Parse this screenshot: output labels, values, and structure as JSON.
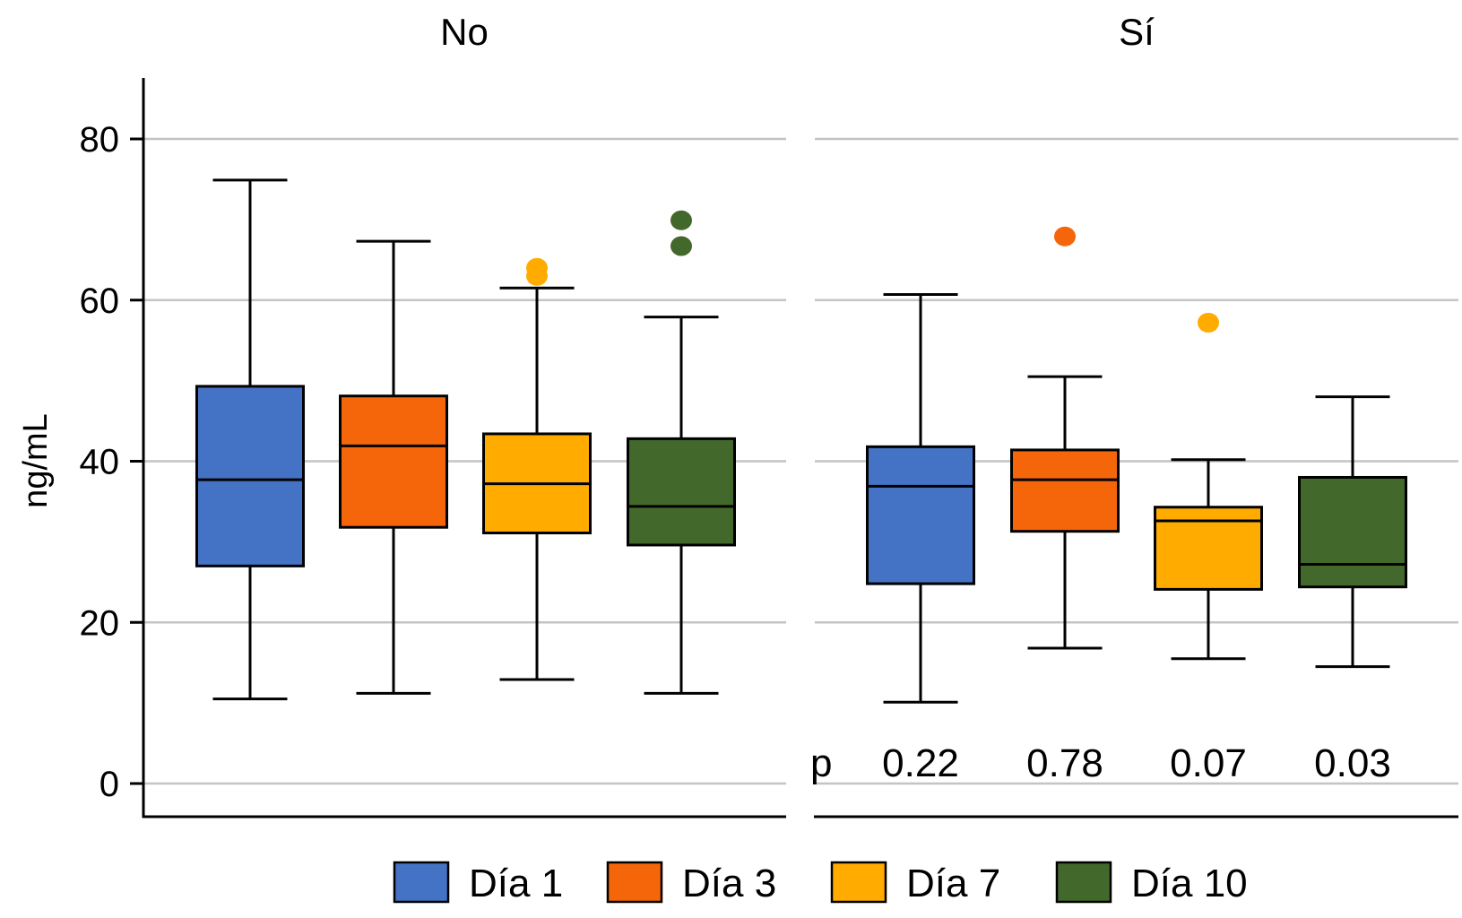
{
  "chart_data": {
    "type": "boxplot",
    "title": "",
    "ylabel": "ng/mL",
    "xlabel": "",
    "ylim": [
      -4,
      87
    ],
    "yticks": [
      0,
      20,
      40,
      60,
      80
    ],
    "ytick_labels": [
      "0",
      "20",
      "40",
      "60",
      "80"
    ],
    "grid": true,
    "legend": {
      "placement": "bottom",
      "entries": [
        {
          "label": "Día 1",
          "color": "#4472C4"
        },
        {
          "label": "Día 3",
          "color": "#F5660A"
        },
        {
          "label": "Día 7",
          "color": "#FFAB00"
        },
        {
          "label": "Día 10",
          "color": "#43682B"
        }
      ]
    },
    "categories": [
      "Día 1",
      "Día 3",
      "Día 7",
      "Día 10"
    ],
    "facets": [
      {
        "title": "No",
        "boxes": [
          {
            "category": "Día 1",
            "whisker_low": 10.5,
            "q1": 27.0,
            "median": 37.7,
            "q3": 49.3,
            "whisker_high": 74.9,
            "outliers": []
          },
          {
            "category": "Día 3",
            "whisker_low": 11.2,
            "q1": 31.8,
            "median": 41.9,
            "q3": 48.1,
            "whisker_high": 67.3,
            "outliers": []
          },
          {
            "category": "Día 7",
            "whisker_low": 12.9,
            "q1": 31.1,
            "median": 37.2,
            "q3": 43.4,
            "whisker_high": 61.5,
            "outliers": [
              64.0,
              63.0
            ]
          },
          {
            "category": "Día 10",
            "whisker_low": 11.2,
            "q1": 29.6,
            "median": 34.4,
            "q3": 42.8,
            "whisker_high": 57.9,
            "outliers": [
              69.9,
              66.7
            ]
          }
        ],
        "annotations": []
      },
      {
        "title": "Sí",
        "boxes": [
          {
            "category": "Día 1",
            "whisker_low": 10.1,
            "q1": 24.8,
            "median": 36.9,
            "q3": 41.8,
            "whisker_high": 60.7,
            "outliers": []
          },
          {
            "category": "Día 3",
            "whisker_low": 16.8,
            "q1": 31.3,
            "median": 37.7,
            "q3": 41.4,
            "whisker_high": 50.5,
            "outliers": [
              67.9
            ]
          },
          {
            "category": "Día 7",
            "whisker_low": 15.5,
            "q1": 24.1,
            "median": 32.6,
            "q3": 34.3,
            "whisker_high": 40.2,
            "outliers": [
              57.2
            ]
          },
          {
            "category": "Día 10",
            "whisker_low": 14.5,
            "q1": 24.4,
            "median": 27.2,
            "q3": 38.0,
            "whisker_high": 48.0,
            "outliers": []
          }
        ],
        "annotations": {
          "prefix": "p",
          "p_values": [
            "0.22",
            "0.78",
            "0.07",
            "0.03"
          ]
        }
      }
    ]
  }
}
